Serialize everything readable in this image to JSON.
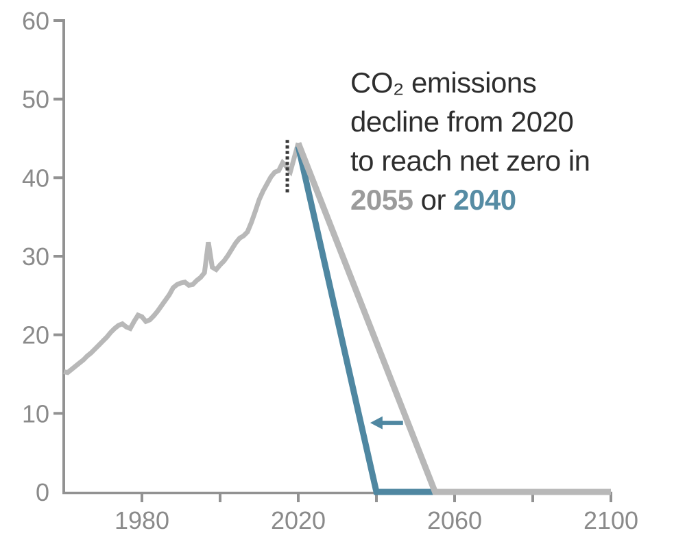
{
  "annotation": {
    "line1": "CO₂ emissions",
    "line2": "decline from 2020",
    "line3": "to reach net zero in",
    "line4_part1": "2055",
    "line4_part2": " or ",
    "line4_part3": "2040"
  },
  "colors": {
    "historical_line": "#b8b8b8",
    "netzero2055_line": "#b8b8b8",
    "netzero2040_line": "#4f87a1",
    "axis": "#929292",
    "tick_label": "#8a8a8a",
    "annotation_text": "#2e2e2e",
    "annotation_2055": "#9b9b9b",
    "annotation_2040": "#568ca4",
    "dashed_marker": "#3a3a3a",
    "arrow": "#4f87a1"
  },
  "chart_data": {
    "type": "line",
    "title": "CO₂ emissions decline from 2020 to reach net zero in 2055 or 2040",
    "xlabel": "",
    "ylabel": "",
    "grid": false,
    "legend": "none",
    "x_axis": {
      "range": [
        1960,
        2100
      ],
      "ticks": [
        {
          "year": 1980,
          "label": "1980"
        },
        {
          "year": 2000,
          "label": ""
        },
        {
          "year": 2020,
          "label": "2020"
        },
        {
          "year": 2040,
          "label": ""
        },
        {
          "year": 2060,
          "label": "2060"
        },
        {
          "year": 2080,
          "label": ""
        },
        {
          "year": 2100,
          "label": "2100"
        }
      ]
    },
    "y_axis": {
      "range": [
        0,
        60
      ],
      "tick_step": 10,
      "ticks": [
        10,
        20,
        30,
        40,
        50,
        60
      ],
      "labels": [
        "0",
        "10",
        "20",
        "30",
        "40",
        "50",
        "60"
      ]
    },
    "series": [
      {
        "name": "historical-emissions",
        "color_key": "historical_line",
        "stroke_width": 7,
        "years": [
          1960,
          1961,
          1962,
          1963,
          1964,
          1965,
          1966,
          1967,
          1968,
          1969,
          1970,
          1971,
          1972,
          1973,
          1974,
          1975,
          1976,
          1977,
          1978,
          1979,
          1980,
          1981,
          1982,
          1983,
          1984,
          1985,
          1986,
          1987,
          1988,
          1989,
          1990,
          1991,
          1992,
          1993,
          1994,
          1995,
          1996,
          1997,
          1998,
          1999,
          2000,
          2001,
          2002,
          2003,
          2004,
          2005,
          2006,
          2007,
          2008,
          2009,
          2010,
          2011,
          2012,
          2013,
          2014,
          2015,
          2016,
          2017,
          2018,
          2019,
          2020
        ],
        "values": [
          15.3,
          15.2,
          15.6,
          16.0,
          16.4,
          16.8,
          17.3,
          17.7,
          18.2,
          18.7,
          19.2,
          19.7,
          20.3,
          20.8,
          21.2,
          21.4,
          21.0,
          20.8,
          21.7,
          22.5,
          22.3,
          21.7,
          21.9,
          22.4,
          23.0,
          23.7,
          24.4,
          25.1,
          26.0,
          26.4,
          26.6,
          26.7,
          26.3,
          26.4,
          26.9,
          27.3,
          27.9,
          31.8,
          28.6,
          28.3,
          28.9,
          29.4,
          30.1,
          30.9,
          31.7,
          32.3,
          32.6,
          33.1,
          34.3,
          35.7,
          37.2,
          38.3,
          39.2,
          40.1,
          40.7,
          40.9,
          41.9,
          41.4,
          40.8,
          42.6,
          44.4
        ]
      },
      {
        "name": "net-zero-2040-projection",
        "color_key": "netzero2040_line",
        "stroke_width": 9,
        "points": [
          [
            2020,
            44.0
          ],
          [
            2040,
            0
          ],
          [
            2055,
            0
          ]
        ]
      },
      {
        "name": "net-zero-2055-projection",
        "color_key": "netzero2055_line",
        "stroke_width": 9,
        "points": [
          [
            2020,
            44.4
          ],
          [
            2055,
            0
          ],
          [
            2100,
            0
          ]
        ]
      }
    ],
    "annotations": {
      "dashed_marker": {
        "x_year": 2017.2,
        "value_from": 37.9,
        "value_to": 44.8
      },
      "arrow": {
        "direction": "left",
        "y_value": 8.8,
        "x_tail_year": 2046.8,
        "x_tip_year": 2038.4
      }
    }
  }
}
